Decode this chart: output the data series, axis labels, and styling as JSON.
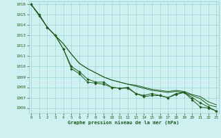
{
  "background_color": "#cff0f0",
  "grid_color": "#8ecece",
  "line_color": "#1e5c1e",
  "marker_color": "#1e5c1e",
  "xlabel": "Graphe pression niveau de la mer (hPa)",
  "xlabel_color": "#1e5c1e",
  "tick_color": "#1e5c1e",
  "ylim": [
    1005.5,
    1016.3
  ],
  "xlim": [
    -0.3,
    23.3
  ],
  "yticks": [
    1006,
    1007,
    1008,
    1009,
    1010,
    1011,
    1012,
    1013,
    1014,
    1015,
    1016
  ],
  "xticks": [
    0,
    1,
    2,
    3,
    4,
    5,
    6,
    7,
    8,
    9,
    10,
    11,
    12,
    13,
    14,
    15,
    16,
    17,
    18,
    19,
    20,
    21,
    22,
    23
  ],
  "series": [
    {
      "y": [
        1016,
        1015,
        1013.8,
        1013,
        1011.7,
        1010.0,
        1009.5,
        1008.8,
        1008.5,
        1008.5,
        1008.0,
        1007.9,
        1008.0,
        1007.4,
        1007.1,
        1007.2,
        1007.2,
        1007.0,
        1007.4,
        1007.5,
        1006.8,
        1006.1,
        1006.0,
        1005.7
      ],
      "marker": true
    },
    {
      "y": [
        1016,
        1015,
        1013.8,
        1013,
        1012.2,
        1011.2,
        1010.3,
        1009.8,
        1009.4,
        1009.0,
        1008.7,
        1008.5,
        1008.3,
        1008.1,
        1007.9,
        1007.7,
        1007.6,
        1007.5,
        1007.6,
        1007.5,
        1007.2,
        1006.9,
        1006.3,
        1006.1
      ],
      "marker": false
    },
    {
      "y": [
        1016,
        1015,
        1013.8,
        1013,
        1012.2,
        1011.2,
        1010.3,
        1009.8,
        1009.4,
        1009.0,
        1008.7,
        1008.5,
        1008.3,
        1008.2,
        1008.0,
        1007.8,
        1007.7,
        1007.6,
        1007.7,
        1007.6,
        1007.3,
        1007.1,
        1006.6,
        1006.3
      ],
      "marker": false
    },
    {
      "y": [
        1016,
        1014.9,
        1013.8,
        1013,
        1011.7,
        1009.8,
        1009.3,
        1008.5,
        1008.4,
        1008.3,
        1008.0,
        1007.9,
        1007.9,
        1007.4,
        1007.2,
        1007.4,
        1007.2,
        1007.0,
        1007.3,
        1007.5,
        1007.0,
        1006.5,
        1006.1,
        1005.7
      ],
      "marker": true
    }
  ]
}
